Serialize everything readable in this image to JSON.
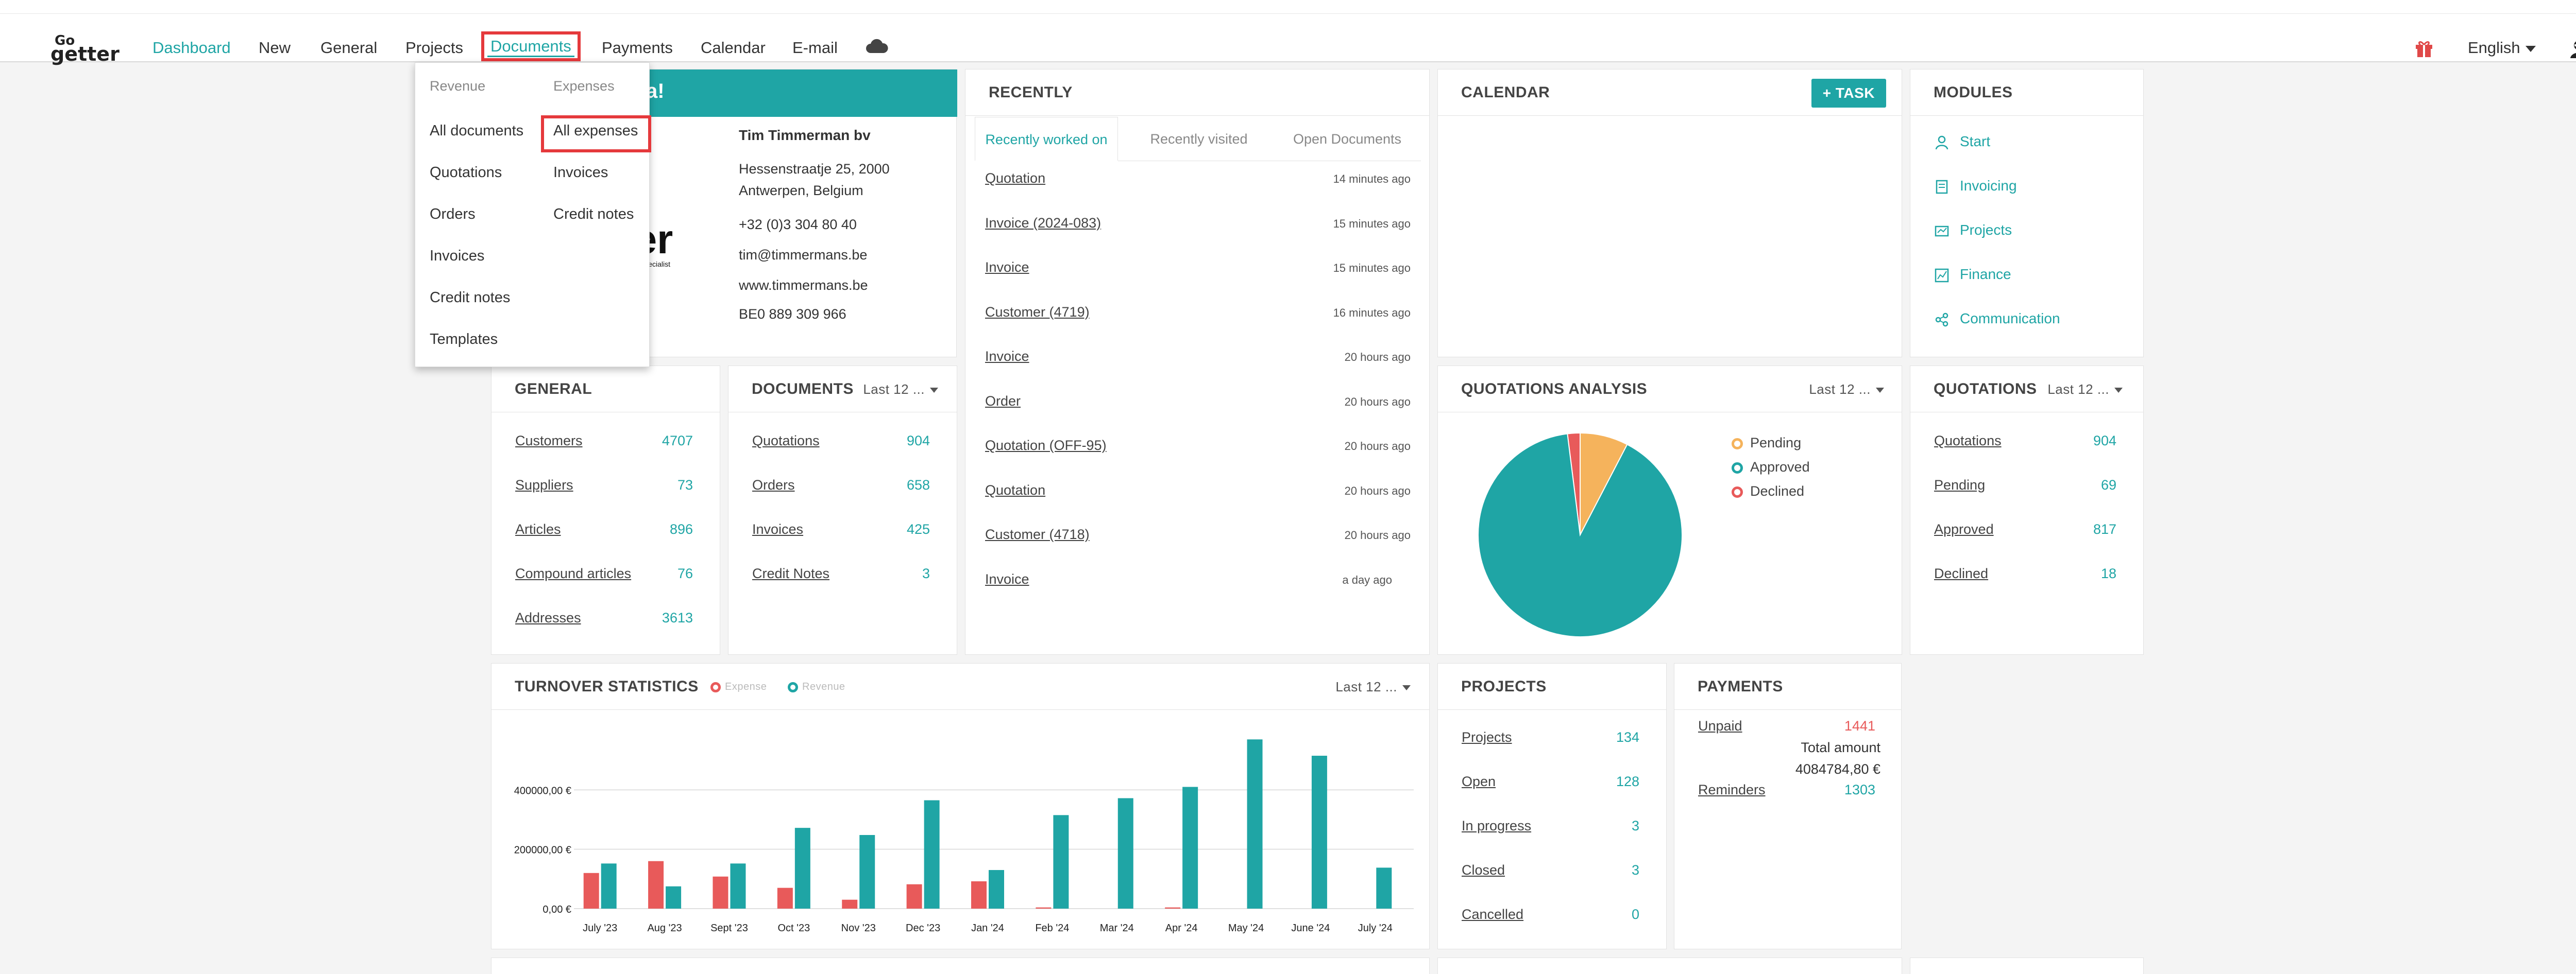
{
  "nav": {
    "items": [
      "Dashboard",
      "New",
      "General",
      "Projects",
      "Documents",
      "Payments",
      "Calendar",
      "E-mail"
    ],
    "language": "English",
    "logo": {
      "go": "Go",
      "getter": "getter"
    }
  },
  "documents_menu": {
    "revenue_header": "Revenue",
    "expenses_header": "Expenses",
    "revenue_items": [
      "All documents",
      "Quotations",
      "Orders",
      "Invoices",
      "Credit notes",
      "Templates"
    ],
    "expense_items": [
      "All expenses",
      "Invoices",
      "Credit notes"
    ]
  },
  "company": {
    "banner_text": "a!",
    "name": "Tim Timmerman bv",
    "street": "Hessenstraatje 25, 2000",
    "city": "Antwerpen, Belgium",
    "phone": "+32 (0)3 304 80 40",
    "email": "tim@timmermans.be",
    "website": "www.timmermans.be",
    "vat": "BE0 889 309 966",
    "logo_text": "ter",
    "logo_tagline": "de specialist"
  },
  "recently": {
    "title": "RECENTLY",
    "tabs": [
      "Recently worked on",
      "Recently visited",
      "Open Documents"
    ],
    "items": [
      {
        "label": "Quotation",
        "time": "14 minutes ago"
      },
      {
        "label": "Invoice (2024-083)",
        "time": "15 minutes ago"
      },
      {
        "label": "Invoice",
        "time": "15 minutes ago"
      },
      {
        "label": "Customer (4719)",
        "time": "16 minutes ago"
      },
      {
        "label": "Invoice",
        "time": "20 hours ago"
      },
      {
        "label": "Order",
        "time": "20 hours ago"
      },
      {
        "label": "Quotation (OFF-95)",
        "time": "20 hours ago"
      },
      {
        "label": "Quotation",
        "time": "20 hours ago"
      },
      {
        "label": "Customer (4718)",
        "time": "20 hours ago"
      },
      {
        "label": "Invoice",
        "time": "a day ago"
      }
    ]
  },
  "calendar": {
    "title": "CALENDAR",
    "task_button": "+ Task"
  },
  "modules": {
    "title": "MODULES",
    "items": [
      "Start",
      "Invoicing",
      "Projects",
      "Finance",
      "Communication"
    ]
  },
  "general": {
    "title": "GENERAL",
    "rows": [
      {
        "label": "Customers",
        "value": "4707"
      },
      {
        "label": "Suppliers",
        "value": "73"
      },
      {
        "label": "Articles",
        "value": "896"
      },
      {
        "label": "Compound articles",
        "value": "76"
      },
      {
        "label": "Addresses",
        "value": "3613"
      }
    ]
  },
  "documents": {
    "title": "DOCUMENTS",
    "period": "Last 12 ...",
    "rows": [
      {
        "label": "Quotations",
        "value": "904"
      },
      {
        "label": "Orders",
        "value": "658"
      },
      {
        "label": "Invoices",
        "value": "425"
      },
      {
        "label": "Credit Notes",
        "value": "3"
      }
    ]
  },
  "quotations_analysis": {
    "title": "QUOTATIONS ANALYSIS",
    "period": "Last 12 ...",
    "legend": [
      {
        "label": "Pending",
        "color": "#f5b35c"
      },
      {
        "label": "Approved",
        "color": "#1fa5a5"
      },
      {
        "label": "Declined",
        "color": "#e85a5a"
      }
    ],
    "values": {
      "Pending": 69,
      "Approved": 817,
      "Declined": 18
    }
  },
  "quotations": {
    "title": "QUOTATIONS",
    "period": "Last 12 ...",
    "rows": [
      {
        "label": "Quotations",
        "value": "904"
      },
      {
        "label": "Pending",
        "value": "69"
      },
      {
        "label": "Approved",
        "value": "817"
      },
      {
        "label": "Declined",
        "value": "18"
      }
    ]
  },
  "turnover": {
    "title": "TURNOVER STATISTICS",
    "period": "Last 12 ...",
    "legend": [
      {
        "label": "Expense",
        "color": "#e85a5a"
      },
      {
        "label": "Revenue",
        "color": "#1fa5a5"
      }
    ]
  },
  "chart_data": {
    "type": "bar",
    "categories": [
      "July '23",
      "Aug '23",
      "Sept '23",
      "Oct '23",
      "Nov '23",
      "Dec '23",
      "Jan '24",
      "Feb '24",
      "Mar '24",
      "Apr '24",
      "May '24",
      "June '24",
      "July '24"
    ],
    "series": [
      {
        "name": "Expense",
        "color": "#e85a5a",
        "values": [
          120000,
          160000,
          108000,
          70000,
          30000,
          82000,
          92000,
          4000,
          0,
          4000,
          0,
          0,
          0
        ]
      },
      {
        "name": "Revenue",
        "color": "#1fa5a5",
        "values": [
          152000,
          75000,
          152000,
          272000,
          248000,
          365000,
          130000,
          315000,
          372000,
          410000,
          570000,
          515000,
          138000
        ]
      }
    ],
    "y_ticks": [
      "0,00 €",
      "200000,00 €",
      "400000,00 €"
    ],
    "ylim": [
      0,
      600000
    ]
  },
  "projects": {
    "title": "PROJECTS",
    "rows": [
      {
        "label": "Projects",
        "value": "134"
      },
      {
        "label": "Open",
        "value": "128"
      },
      {
        "label": "In progress",
        "value": "3"
      },
      {
        "label": "Closed",
        "value": "3"
      },
      {
        "label": "Cancelled",
        "value": "0"
      }
    ]
  },
  "payments": {
    "title": "PAYMENTS",
    "unpaid_label": "Unpaid",
    "unpaid_value": "1441",
    "total_label": "Total amount",
    "total_value": "4084784,80 €",
    "reminders_label": "Reminders",
    "reminders_value": "1303"
  }
}
